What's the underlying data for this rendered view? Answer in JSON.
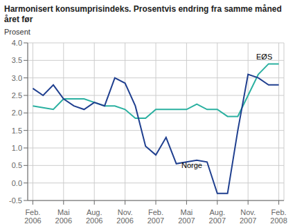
{
  "chart_data": {
    "type": "line",
    "title": "Harmonisert konsumprisindeks. Prosentvis endring fra samme måned\nåret før",
    "y_label": "Prosent",
    "categories": [
      "Feb.\n2006",
      null,
      null,
      "Mai\n2006",
      null,
      null,
      "Aug.\n2006",
      null,
      null,
      "Nov.\n2006",
      null,
      null,
      "Feb.\n2007",
      null,
      null,
      "Mai\n2007",
      null,
      null,
      "Aug.\n2007",
      null,
      null,
      "Nov.\n2007",
      null,
      null,
      "Feb.\n2008"
    ],
    "series": [
      {
        "color": "#2ab0a0",
        "values": [
          2.2,
          2.15,
          2.1,
          2.4,
          2.4,
          2.4,
          2.3,
          2.2,
          2.2,
          2.1,
          1.85,
          1.85,
          2.1,
          2.1,
          2.1,
          2.1,
          2.25,
          2.1,
          2.1,
          1.9,
          1.9,
          2.5,
          3.1,
          3.4,
          3.4
        ]
      },
      {
        "color": "#1f3f8f",
        "values": [
          2.7,
          2.5,
          2.8,
          2.4,
          2.2,
          2.1,
          2.3,
          2.2,
          3.0,
          2.85,
          2.2,
          1.05,
          0.8,
          1.3,
          0.55,
          0.6,
          0.65,
          0.6,
          -0.3,
          -0.3,
          1.5,
          3.1,
          3.0,
          2.8,
          2.8
        ]
      }
    ],
    "ylim": [
      -0.5,
      4.0
    ],
    "yticks": [
      -0.5,
      {
        "value": 0,
        "label": "0.0"
      },
      0.5,
      {
        "value": 1,
        "label": "1.0"
      },
      1.5,
      {
        "value": 2,
        "label": "2.0"
      },
      2.5,
      {
        "value": 3,
        "label": "3.0"
      },
      3.5,
      {
        "value": 4,
        "label": "4.0"
      }
    ],
    "grid": true,
    "annotations": [
      {
        "text": "Norge",
        "x": 14.5,
        "y": 0.42
      },
      {
        "text": "EØS",
        "x": 21.8,
        "y": 3.52
      }
    ]
  }
}
